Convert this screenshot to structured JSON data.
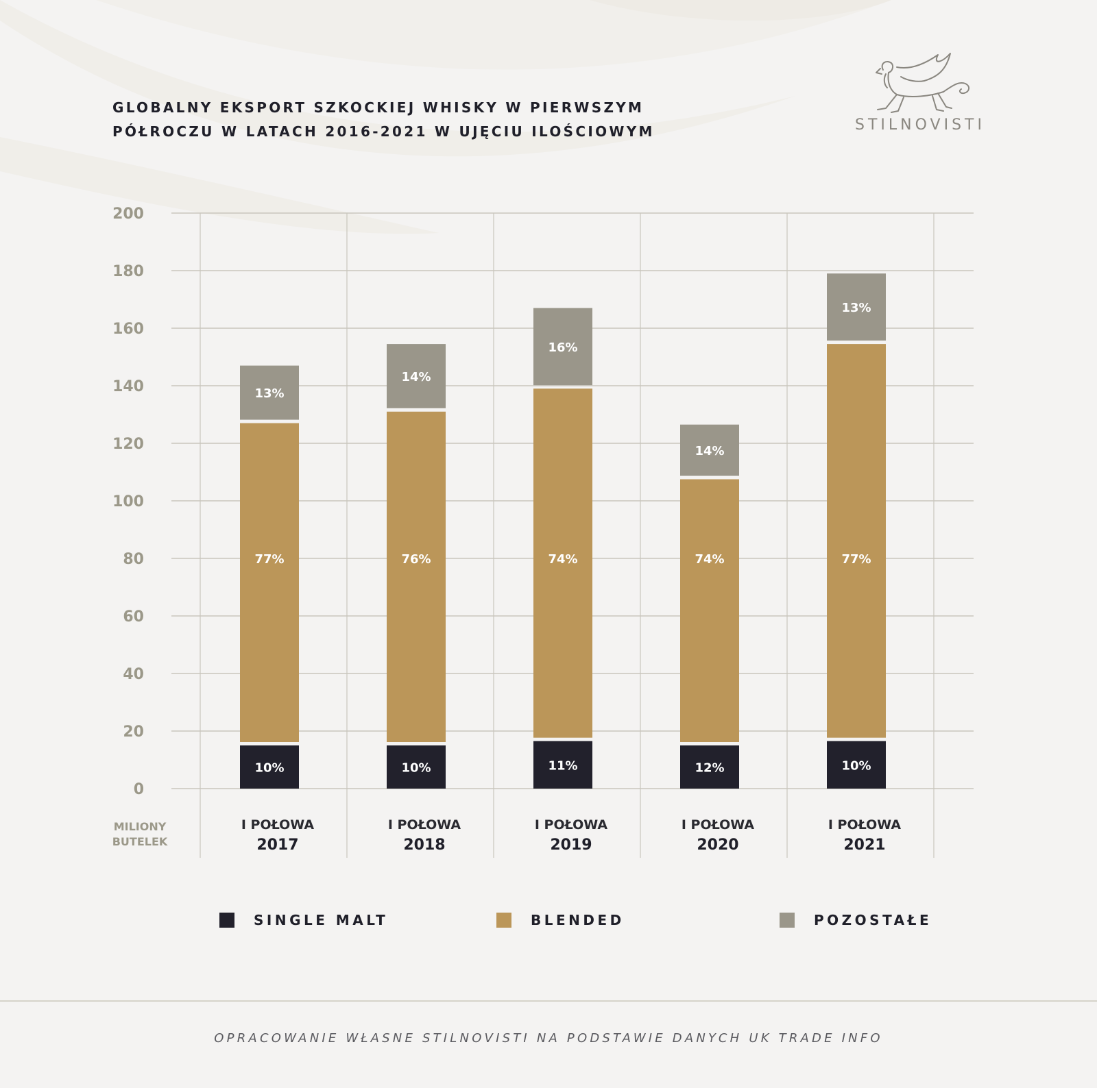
{
  "title": {
    "line1": "GLOBALNY EKSPORT SZKOCKIEJ WHISKY W PIERWSZYM",
    "line2": "PÓŁROCZU W LATACH 2016-2021 W UJĘCIU ILOŚCIOWYM"
  },
  "logo": {
    "text": "STILNOVISTI",
    "icon": "griffin-logo-icon"
  },
  "colors": {
    "single_malt": "#22212c",
    "blended": "#bb9659",
    "pozostale": "#9a968a",
    "grid": "#c9c6bd",
    "axis_text": "#9b9889",
    "background": "#f4f3f2"
  },
  "chart_data": {
    "type": "bar",
    "stacked": true,
    "ylabel_lines": [
      "MILIONY",
      "BUTELEK"
    ],
    "ylim": [
      0,
      200
    ],
    "yticks": [
      0,
      20,
      40,
      60,
      80,
      100,
      120,
      140,
      160,
      180,
      200
    ],
    "grid": true,
    "legend_position": "bottom",
    "categories": [
      {
        "line1": "I POŁOWA",
        "line2": "2017"
      },
      {
        "line1": "I POŁOWA",
        "line2": "2018"
      },
      {
        "line1": "I POŁOWA",
        "line2": "2019"
      },
      {
        "line1": "I POŁOWA",
        "line2": "2020"
      },
      {
        "line1": "I POŁOWA",
        "line2": "2021"
      }
    ],
    "series": [
      {
        "name": "SINGLE MALT",
        "color_key": "single_malt",
        "values": [
          15,
          15,
          16.5,
          15,
          16.5
        ],
        "labels": [
          "10%",
          "10%",
          "11%",
          "12%",
          "10%"
        ]
      },
      {
        "name": "BLENDED",
        "color_key": "blended",
        "values": [
          112,
          116,
          122.5,
          92.5,
          138
        ],
        "labels": [
          "77%",
          "76%",
          "74%",
          "74%",
          "77%"
        ]
      },
      {
        "name": "POZOSTAŁE",
        "color_key": "pozostale",
        "values": [
          20,
          23.5,
          28,
          19,
          24.5
        ],
        "labels": [
          "13%",
          "14%",
          "16%",
          "14%",
          "13%"
        ]
      }
    ]
  },
  "legend": [
    {
      "label": "SINGLE MALT",
      "color_key": "single_malt"
    },
    {
      "label": "BLENDED",
      "color_key": "blended"
    },
    {
      "label": "POZOSTAŁE",
      "color_key": "pozostale"
    }
  ],
  "source": "OPRACOWANIE WŁASNE STILNOVISTI NA PODSTAWIE DANYCH UK TRADE INFO"
}
